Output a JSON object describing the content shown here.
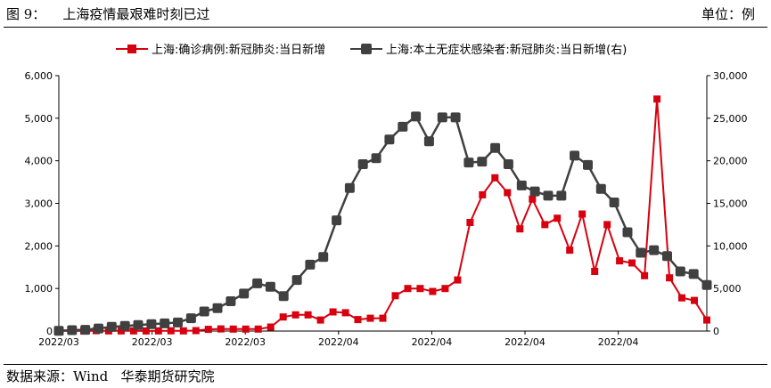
{
  "header": {
    "title": "图 9：    上海疫情最艰难时刻已过",
    "unit": "单位：例"
  },
  "footer": {
    "source": "数据来源：Wind   华泰期货研究院"
  },
  "colors": {
    "series1": "#d7000f",
    "series2": "#404040"
  },
  "chart_data": {
    "type": "line",
    "x_tick_labels": [
      "2022/03",
      "2022/03",
      "2022/03",
      "2022/04",
      "2022/04",
      "2022/04",
      "2022/04"
    ],
    "y_left": {
      "lim": [
        0,
        6000
      ],
      "ticks": [
        "0",
        "1,000",
        "2,000",
        "3,000",
        "4,000",
        "5,000",
        "6,000"
      ]
    },
    "y_right": {
      "lim": [
        0,
        30000
      ],
      "ticks": [
        "0",
        "5,000",
        "10,000",
        "15,000",
        "20,000",
        "25,000",
        "30,000"
      ]
    },
    "series": [
      {
        "name": "上海:确诊病例:新冠肺炎:当日新增",
        "axis": "left",
        "marker": "square",
        "values": [
          2,
          4,
          2,
          8,
          5,
          5,
          5,
          3,
          4,
          6,
          5,
          10,
          40,
          50,
          45,
          45,
          45,
          95,
          330,
          380,
          380,
          260,
          450,
          430,
          270,
          300,
          300,
          830,
          1000,
          1000,
          930,
          1000,
          1200,
          2550,
          3200,
          3600,
          3250,
          2400,
          3100,
          2500,
          2650,
          1900,
          2750,
          1400,
          2500,
          1650,
          1600,
          1300,
          5450,
          1250,
          780,
          720,
          260
        ]
      },
      {
        "name": "上海:本土无症状感染者:新冠肺炎:当日新增(右)",
        "axis": "right",
        "marker": "square",
        "values": [
          20,
          100,
          150,
          300,
          500,
          600,
          700,
          800,
          900,
          1000,
          1500,
          2300,
          2700,
          3500,
          4400,
          5600,
          5200,
          4100,
          6000,
          7800,
          8700,
          13000,
          16800,
          19600,
          20300,
          22500,
          24000,
          25200,
          22300,
          25100,
          25100,
          19800,
          19900,
          21500,
          19600,
          17100,
          16400,
          15900,
          15900,
          20600,
          19500,
          16700,
          15100,
          11600,
          9200,
          9500,
          8800,
          7000,
          6700,
          5400
        ]
      }
    ]
  }
}
